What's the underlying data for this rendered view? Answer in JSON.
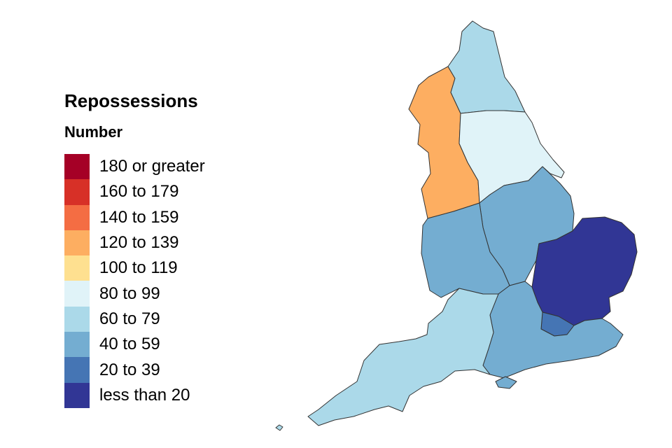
{
  "legend": {
    "title": "Repossessions",
    "subtitle": "Number",
    "items": [
      {
        "label": "180 or greater",
        "color": "#a50026"
      },
      {
        "label": "160 to 179",
        "color": "#d73027"
      },
      {
        "label": "140 to 159",
        "color": "#f46d43"
      },
      {
        "label": "120 to 139",
        "color": "#fdae61"
      },
      {
        "label": "100 to 119",
        "color": "#fee090"
      },
      {
        "label": "80 to 99",
        "color": "#e0f3f8"
      },
      {
        "label": "60 to 79",
        "color": "#abd9e9"
      },
      {
        "label": "40 to 59",
        "color": "#74add1"
      },
      {
        "label": "20 to 39",
        "color": "#4575b4"
      },
      {
        "label": "less than 20",
        "color": "#313695"
      }
    ]
  },
  "regions": [
    {
      "name": "North East",
      "band": "60 to 79"
    },
    {
      "name": "North West",
      "band": "120 to 139"
    },
    {
      "name": "Yorkshire and The Humber",
      "band": "80 to 99"
    },
    {
      "name": "East Midlands",
      "band": "40 to 59"
    },
    {
      "name": "West Midlands",
      "band": "40 to 59"
    },
    {
      "name": "East of England",
      "band": "less than 20"
    },
    {
      "name": "London",
      "band": "20 to 39"
    },
    {
      "name": "South East",
      "band": "40 to 59"
    },
    {
      "name": "South West",
      "band": "60 to 79"
    }
  ]
}
